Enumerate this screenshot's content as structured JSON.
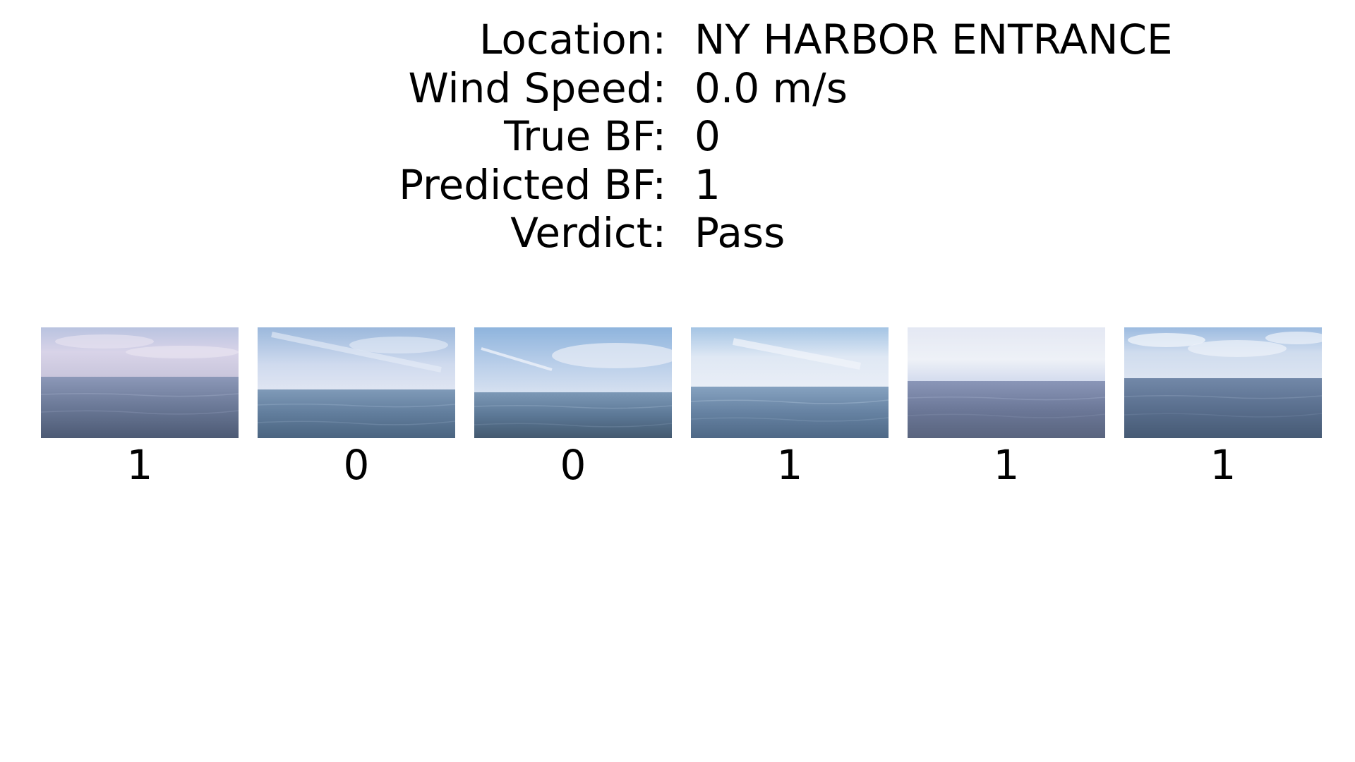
{
  "info": {
    "rows": [
      {
        "label": "Location:",
        "value": "NY HARBOR ENTRANCE"
      },
      {
        "label": "Wind Speed:",
        "value": "0.0 m/s"
      },
      {
        "label": "True BF:",
        "value": "0"
      },
      {
        "label": "Predicted BF:",
        "value": "1"
      },
      {
        "label": "Verdict:",
        "value": "Pass"
      }
    ]
  },
  "tiles": [
    {
      "caption": "1",
      "image": "sea-horizon-photo"
    },
    {
      "caption": "0",
      "image": "sea-horizon-photo"
    },
    {
      "caption": "0",
      "image": "sea-horizon-photo"
    },
    {
      "caption": "1",
      "image": "sea-horizon-photo"
    },
    {
      "caption": "1",
      "image": "sea-horizon-photo"
    },
    {
      "caption": "1",
      "image": "sea-horizon-photo"
    }
  ]
}
